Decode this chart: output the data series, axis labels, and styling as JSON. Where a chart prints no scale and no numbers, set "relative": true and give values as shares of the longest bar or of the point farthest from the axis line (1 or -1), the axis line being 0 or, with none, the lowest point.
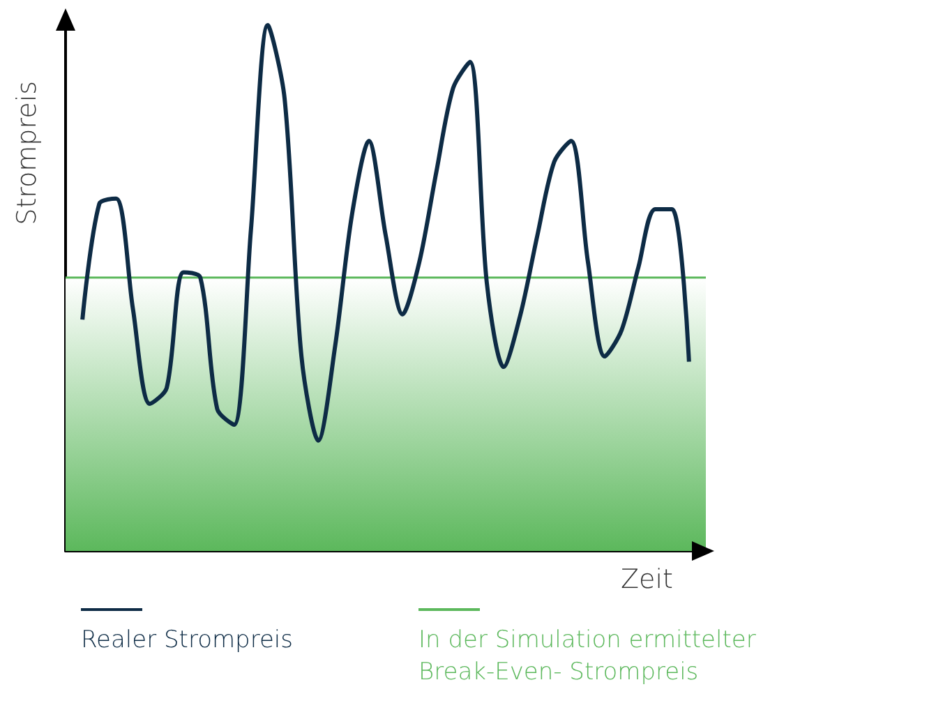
{
  "chart_data": {
    "type": "line",
    "relative": true,
    "xlabel": "Zeit",
    "ylabel": "Strompreis",
    "legend": "bottom",
    "grid": false,
    "marker": "none",
    "line_style": "solid",
    "categories": [
      null,
      null,
      null,
      null,
      null,
      null,
      null,
      null,
      null,
      null,
      null,
      null,
      null,
      null,
      null,
      null,
      null,
      null,
      null,
      null,
      null,
      null,
      null,
      null,
      null,
      null,
      null,
      null,
      null,
      null,
      null,
      null,
      null,
      null,
      null,
      null,
      null,
      null,
      null
    ],
    "series": [
      {
        "name": "Realer Strompreis",
        "color": "#0d2b45",
        "values": [
          null,
          0.44,
          0.66,
          0.67,
          0.46,
          0.28,
          0.31,
          0.53,
          0.52,
          0.27,
          0.24,
          0.61,
          1.0,
          0.86,
          0.37,
          0.21,
          0.39,
          0.64,
          0.78,
          0.6,
          0.45,
          0.55,
          0.72,
          0.88,
          0.93,
          0.51,
          0.35,
          0.45,
          0.6,
          0.74,
          0.78,
          0.55,
          0.37,
          0.42,
          0.54,
          0.65,
          0.65,
          0.36,
          null
        ]
      },
      {
        "name": "In der Simulation ermittelter Break-Even- Strompreis",
        "type": "area",
        "color": "#5cb85c",
        "values": [
          0.52,
          0.52,
          0.52,
          0.52,
          0.52,
          0.52,
          0.52,
          0.52,
          0.52,
          0.52,
          0.52,
          0.52,
          0.52,
          0.52,
          0.52,
          0.52,
          0.52,
          0.52,
          0.52,
          0.52,
          0.52,
          0.52,
          0.52,
          0.52,
          0.52,
          0.52,
          0.52,
          0.52,
          0.52,
          0.52,
          0.52,
          0.52,
          0.52,
          0.52,
          0.52,
          0.52,
          0.52,
          0.52,
          0.52
        ]
      }
    ]
  }
}
